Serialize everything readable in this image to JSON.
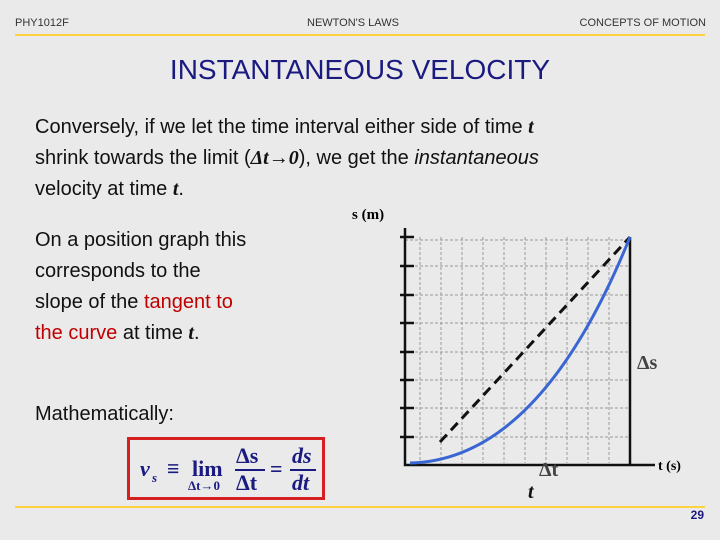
{
  "header": {
    "left": "PHY1012F",
    "center": "NEWTON'S LAWS",
    "right": "CONCEPTS OF MOTION"
  },
  "title": "INSTANTANEOUS VELOCITY",
  "intro": {
    "line1": [
      "Conversely, if we let the time interval either side of time ",
      "t"
    ],
    "line2": [
      "shrink towards the limit (",
      "Δt→0",
      "), we get the ",
      "instantaneous"
    ],
    "line3": [
      "velocity at time ",
      "t",
      "."
    ]
  },
  "graph_text": {
    "lines": [
      "On a position graph this",
      "corresponds to the",
      "slope of the ",
      "tangent to",
      "the curve",
      " at time ",
      "t",
      "."
    ]
  },
  "math_label": "Mathematically:",
  "formula": {
    "v": "v",
    "sub": "s",
    "equiv": "≡",
    "lim": "lim",
    "limit": "Δt→0",
    "num1": "Δs",
    "den1": "Δt",
    "eq": "=",
    "num2": "ds",
    "den2": "dt"
  },
  "graph": {
    "y_axis": "s (m)",
    "x_axis": "t (s)",
    "delta_s": "Δs",
    "delta_t": "Δt",
    "t_mark": "t"
  },
  "page_number": "29"
}
